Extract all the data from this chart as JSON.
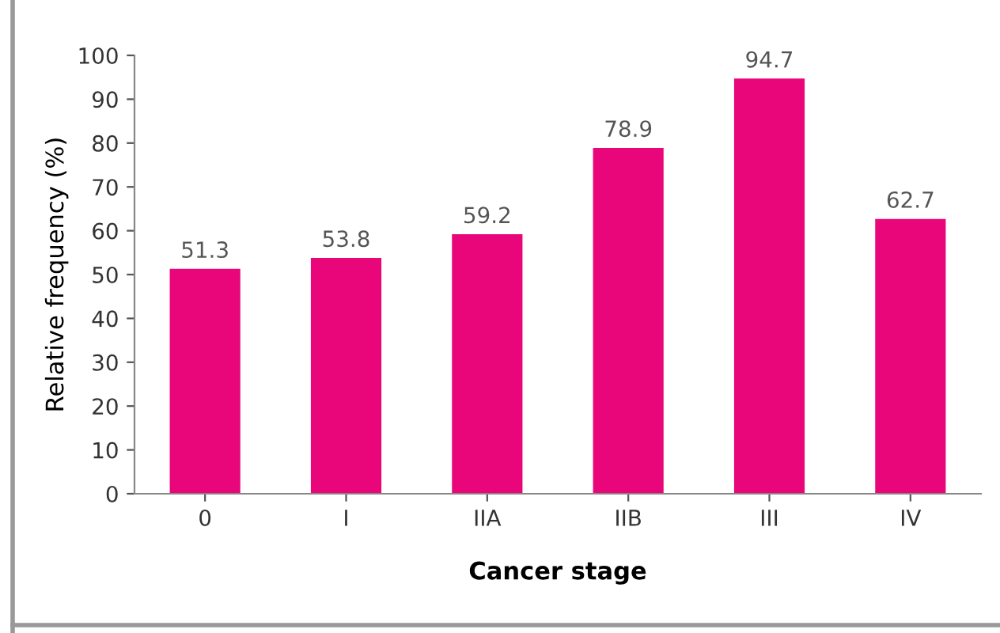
{
  "chart_data": {
    "type": "bar",
    "xlabel": "Cancer stage",
    "ylabel": "Relative frequency (%)",
    "categories": [
      "0",
      "I",
      "IIA",
      "IIB",
      "III",
      "IV"
    ],
    "values": [
      51.3,
      53.8,
      59.2,
      78.9,
      94.7,
      62.7
    ],
    "color": "#e8067a",
    "ylim": [
      0,
      100
    ],
    "yticks": [
      0,
      10,
      20,
      30,
      40,
      50,
      60,
      70,
      80,
      90,
      100
    ],
    "data_labels": true,
    "grid": false,
    "legend": false
  }
}
